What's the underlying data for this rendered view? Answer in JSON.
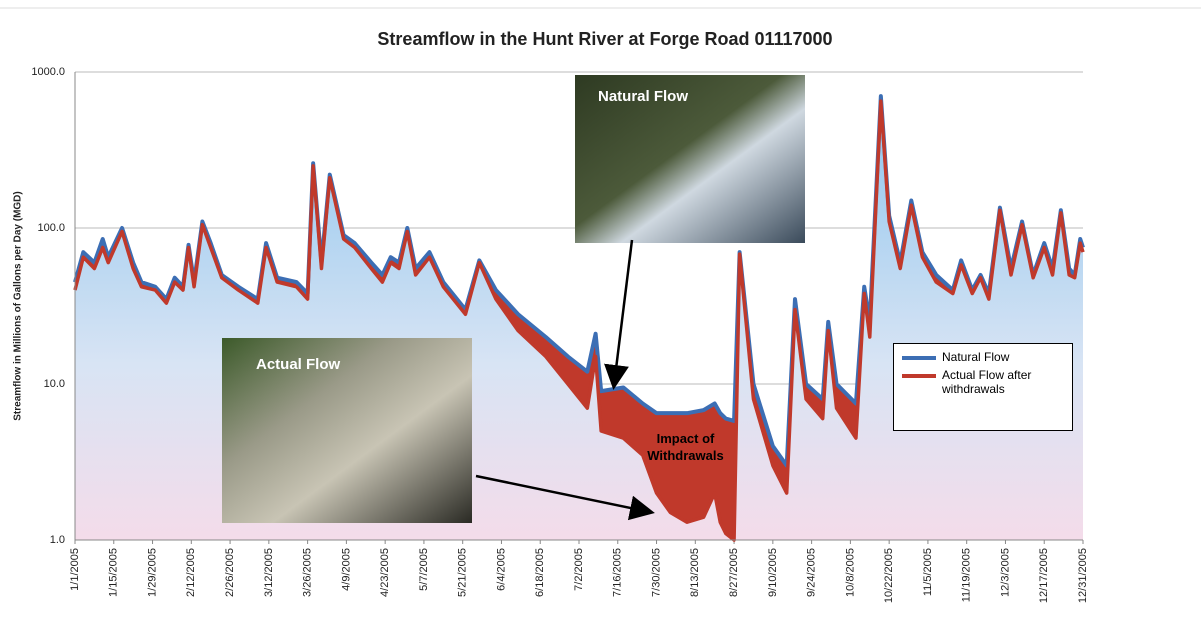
{
  "chart_data": {
    "type": "area",
    "title": "Streamflow in the Hunt River at Forge Road 01117000",
    "y_label": "Streamflow in Millions of Gallons per Day (MGD)",
    "log_y": true,
    "grid": true,
    "legend_position": "right",
    "ylim": [
      1,
      1000
    ],
    "yticks": [
      {
        "value": 1,
        "label": "1.0"
      },
      {
        "value": 10,
        "label": "10.0"
      },
      {
        "value": 100,
        "label": "100.0"
      },
      {
        "value": 1000,
        "label": "1000.0"
      }
    ],
    "xlim": [
      "1/1/2005",
      "12/31/2005"
    ],
    "xticks": [
      "1/1/2005",
      "1/15/2005",
      "1/29/2005",
      "2/12/2005",
      "2/26/2005",
      "3/12/2005",
      "3/26/2005",
      "4/9/2005",
      "4/23/2005",
      "5/7/2005",
      "5/21/2005",
      "6/4/2005",
      "6/18/2005",
      "7/2/2005",
      "7/16/2005",
      "7/30/2005",
      "8/13/2005",
      "8/27/2005",
      "9/10/2005",
      "9/24/2005",
      "10/8/2005",
      "10/22/2005",
      "11/5/2005",
      "11/19/2005",
      "12/3/2005",
      "12/17/2005",
      "12/31/2005"
    ],
    "x": [
      "1/1/2005",
      "1/4/2005",
      "1/8/2005",
      "1/11/2005",
      "1/13/2005",
      "1/18/2005",
      "1/22/2005",
      "1/25/2005",
      "1/30/2005",
      "2/3/2005",
      "2/6/2005",
      "2/9/2005",
      "2/11/2005",
      "2/13/2005",
      "2/16/2005",
      "2/19/2005",
      "2/23/2005",
      "3/1/2005",
      "3/8/2005",
      "3/11/2005",
      "3/15/2005",
      "3/22/2005",
      "3/26/2005",
      "3/28/2005",
      "3/31/2005",
      "4/3/2005",
      "4/8/2005",
      "4/12/2005",
      "4/18/2005",
      "4/22/2005",
      "4/25/2005",
      "4/28/2005",
      "5/1/2005",
      "5/4/2005",
      "5/9/2005",
      "5/14/2005",
      "5/22/2005",
      "5/27/2005",
      "6/2/2005",
      "6/10/2005",
      "6/20/2005",
      "6/28/2005",
      "7/5/2005",
      "7/8/2005",
      "7/10/2005",
      "7/18/2005",
      "7/25/2005",
      "7/30/2005",
      "8/4/2005",
      "8/10/2005",
      "8/16/2005",
      "8/20/2005",
      "8/22/2005",
      "8/24/2005",
      "8/27/2005",
      "8/29/2005",
      "9/3/2005",
      "9/10/2005",
      "9/15/2005",
      "9/18/2005",
      "9/22/2005",
      "9/28/2005",
      "9/30/2005",
      "10/3/2005",
      "10/10/2005",
      "10/13/2005",
      "10/15/2005",
      "10/19/2005",
      "10/22/2005",
      "10/26/2005",
      "10/30/2005",
      "11/3/2005",
      "11/8/2005",
      "11/14/2005",
      "11/17/2005",
      "11/21/2005",
      "11/24/2005",
      "11/27/2005",
      "12/1/2005",
      "12/5/2005",
      "12/9/2005",
      "12/13/2005",
      "12/17/2005",
      "12/20/2005",
      "12/23/2005",
      "12/26/2005",
      "12/28/2005",
      "12/30/2005",
      "12/31/2005"
    ],
    "series": [
      {
        "name": "Natural Flow",
        "color": "#3c6eb4",
        "values": [
          45,
          70,
          60,
          85,
          65,
          100,
          60,
          45,
          42,
          35,
          48,
          42,
          78,
          45,
          110,
          80,
          50,
          42,
          35,
          80,
          48,
          45,
          38,
          260,
          60,
          220,
          90,
          80,
          60,
          50,
          65,
          60,
          100,
          55,
          70,
          45,
          30,
          62,
          40,
          28,
          20,
          15,
          12,
          21,
          9,
          9.5,
          7.5,
          6.5,
          6.5,
          6.5,
          6.8,
          7.5,
          6.5,
          6,
          5.8,
          70,
          10,
          4,
          3,
          35,
          10,
          8,
          25,
          10,
          7.5,
          42,
          25,
          700,
          120,
          60,
          150,
          70,
          50,
          40,
          62,
          40,
          50,
          38,
          135,
          55,
          110,
          50,
          80,
          55,
          130,
          55,
          50,
          85,
          75
        ]
      },
      {
        "name": "Actual Flow after withdrawals",
        "color": "#c0392b",
        "values": [
          40,
          65,
          55,
          75,
          60,
          95,
          55,
          42,
          40,
          33,
          45,
          40,
          75,
          42,
          105,
          75,
          48,
          40,
          33,
          75,
          45,
          42,
          35,
          250,
          55,
          210,
          85,
          75,
          55,
          45,
          60,
          55,
          95,
          50,
          65,
          42,
          28,
          60,
          35,
          22,
          15,
          10,
          7,
          15,
          5,
          4.5,
          3.5,
          2,
          1.5,
          1.3,
          1.4,
          2,
          1.3,
          1.1,
          1.0,
          68,
          8,
          3,
          2,
          30,
          8,
          6,
          22,
          7,
          4.5,
          38,
          20,
          650,
          110,
          55,
          140,
          65,
          45,
          38,
          58,
          38,
          48,
          35,
          130,
          50,
          105,
          48,
          75,
          50,
          125,
          50,
          48,
          80,
          70
        ]
      }
    ],
    "annotations": [
      "Natural Flow",
      "Actual Flow",
      "Impact of Withdrawals"
    ]
  }
}
